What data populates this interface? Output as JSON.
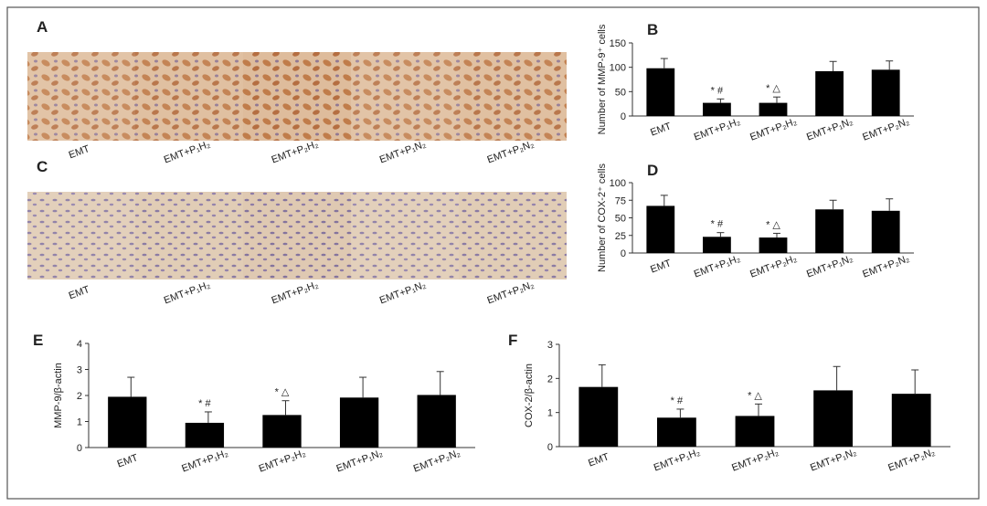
{
  "image_panels": [
    {
      "letter": "A",
      "labels": [
        "EMT",
        "EMT+P₁H₂",
        "EMT+P₂H₂",
        "EMT+P₁N₂",
        "EMT+P₂N₂"
      ]
    },
    {
      "letter": "C",
      "labels": [
        "EMT",
        "EMT+P₁H₂",
        "EMT+P₂H₂",
        "EMT+P₁N₂",
        "EMT+P₂N₂"
      ]
    }
  ],
  "chart_data": [
    {
      "type": "bar",
      "letter": "B",
      "y_label": "Number of MMP-9⁺ cells",
      "categories": [
        "EMT",
        "EMT+P₁H₂",
        "EMT+P₂H₂",
        "EMT+P₁N₂",
        "EMT+P₂N₂"
      ],
      "values": [
        98,
        27,
        27,
        92,
        95
      ],
      "errors": [
        20,
        8,
        12,
        20,
        18
      ],
      "value_annotations": [
        null,
        "* #",
        "* △",
        null,
        null
      ],
      "color": "#000000",
      "ylim": [
        0,
        150
      ],
      "yticks": [
        0,
        50,
        100,
        150
      ]
    },
    {
      "type": "bar",
      "letter": "D",
      "y_label": "Number of COX-2⁺ cells",
      "categories": [
        "EMT",
        "EMT+P₁H₂",
        "EMT+P₂H₂",
        "EMT+P₁N₂",
        "EMT+P₂N₂"
      ],
      "values": [
        67,
        23,
        22,
        62,
        60
      ],
      "errors": [
        15,
        6,
        6,
        13,
        17
      ],
      "value_annotations": [
        null,
        "* #",
        "* △",
        null,
        null
      ],
      "color": "#000000",
      "ylim": [
        0,
        100
      ],
      "yticks": [
        0,
        25,
        50,
        75,
        100
      ]
    },
    {
      "type": "bar",
      "letter": "E",
      "y_label": "MMP-9/β-actin",
      "categories": [
        "EMT",
        "EMT+P₁H₂",
        "EMT+P₂H₂",
        "EMT+P₁N₂",
        "EMT+P₂N₂"
      ],
      "values": [
        1.95,
        0.95,
        1.25,
        1.92,
        2.02
      ],
      "errors": [
        0.75,
        0.42,
        0.55,
        0.78,
        0.9
      ],
      "value_annotations": [
        null,
        "* #",
        "* △",
        null,
        null
      ],
      "color": "#000000",
      "ylim": [
        0,
        4
      ],
      "yticks": [
        0,
        1,
        2,
        3,
        4
      ]
    },
    {
      "type": "bar",
      "letter": "F",
      "y_label": "COX-2/β-actin",
      "categories": [
        "EMT",
        "EMT+P₁H₂",
        "EMT+P₂H₂",
        "EMT+P₁N₂",
        "EMT+P₂N₂"
      ],
      "values": [
        1.75,
        0.85,
        0.9,
        1.65,
        1.55
      ],
      "errors": [
        0.65,
        0.25,
        0.35,
        0.7,
        0.7
      ],
      "value_annotations": [
        null,
        "* #",
        "* △",
        null,
        null
      ],
      "color": "#000000",
      "ylim": [
        0,
        3
      ],
      "yticks": [
        0,
        1,
        2,
        3
      ]
    }
  ]
}
